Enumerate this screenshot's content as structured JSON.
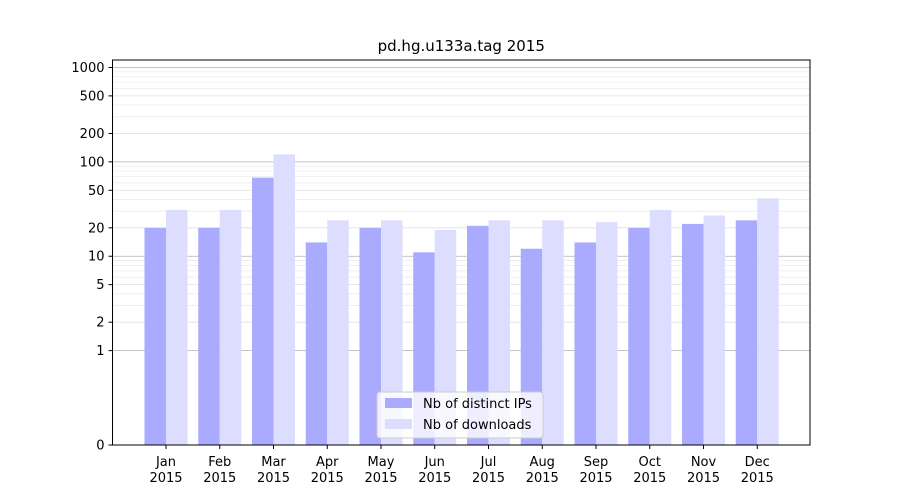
{
  "chart_data": {
    "type": "bar",
    "title": "pd.hg.u133a.tag 2015",
    "xlabel": "",
    "ylabel": "",
    "scale": "symlog",
    "yticks": [
      0,
      1,
      2,
      5,
      10,
      20,
      50,
      100,
      200,
      500,
      1000
    ],
    "ytick_labels": [
      "0",
      "1",
      "2",
      "5",
      "10",
      "20",
      "50",
      "100",
      "200",
      "500",
      "1000"
    ],
    "ylim": [
      0,
      1200
    ],
    "categories": [
      "Jan",
      "Feb",
      "Mar",
      "Apr",
      "May",
      "Jun",
      "Jul",
      "Aug",
      "Sep",
      "Oct",
      "Nov",
      "Dec"
    ],
    "category_year": "2015",
    "series": [
      {
        "name": "Nb of distinct IPs",
        "color": "#aaaaff",
        "values": [
          20,
          20,
          68,
          14,
          20,
          11,
          21,
          12,
          14,
          20,
          22,
          24
        ]
      },
      {
        "name": "Nb of downloads",
        "color": "#ddddff",
        "values": [
          31,
          31,
          120,
          24,
          24,
          19,
          24,
          24,
          23,
          31,
          27,
          41
        ]
      }
    ],
    "grid": true,
    "legend": "bottom-center"
  }
}
